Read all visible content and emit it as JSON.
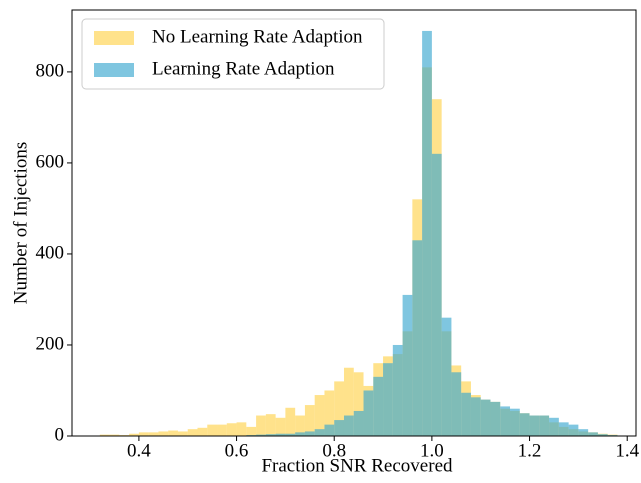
{
  "chart_data": {
    "type": "histogram",
    "xlabel": "Fraction SNR Recovered",
    "ylabel": "Number of Injections",
    "bins": [
      0.3,
      0.32,
      0.34,
      0.36,
      0.38,
      0.4,
      0.42,
      0.44,
      0.46,
      0.48,
      0.5,
      0.52,
      0.54,
      0.56,
      0.58,
      0.6,
      0.62,
      0.64,
      0.66,
      0.68,
      0.7,
      0.72,
      0.74,
      0.76,
      0.78,
      0.8,
      0.82,
      0.84,
      0.86,
      0.88,
      0.9,
      0.92,
      0.94,
      0.96,
      0.98,
      1.0,
      1.02,
      1.04,
      1.06,
      1.08,
      1.1,
      1.12,
      1.14,
      1.16,
      1.18,
      1.2,
      1.22,
      1.24,
      1.26,
      1.28,
      1.3,
      1.32,
      1.34,
      1.36,
      1.38,
      1.4
    ],
    "series": [
      {
        "name": "No Learning Rate Adaption",
        "color": "#ffd24d",
        "values": [
          0,
          3,
          3,
          2,
          5,
          8,
          8,
          10,
          12,
          10,
          15,
          18,
          25,
          25,
          28,
          30,
          20,
          45,
          48,
          40,
          62,
          45,
          68,
          90,
          100,
          120,
          150,
          140,
          110,
          160,
          175,
          180,
          230,
          520,
          810,
          740,
          230,
          155,
          120,
          90,
          80,
          75,
          60,
          55,
          50,
          45,
          45,
          30,
          20,
          15,
          10,
          8,
          5,
          3,
          1
        ]
      },
      {
        "name": "Learning Rate Adaption",
        "color": "#3aa8cf",
        "values": [
          0,
          0,
          0,
          0,
          0,
          0,
          0,
          0,
          0,
          0,
          0,
          0,
          0,
          0,
          1,
          1,
          2,
          3,
          4,
          5,
          5,
          8,
          10,
          15,
          25,
          35,
          45,
          55,
          100,
          130,
          160,
          200,
          310,
          430,
          890,
          620,
          260,
          140,
          95,
          85,
          80,
          75,
          65,
          60,
          50,
          45,
          45,
          40,
          30,
          25,
          15,
          8,
          4,
          2,
          1
        ]
      }
    ],
    "alpha": 0.65,
    "xlim": [
      0.263,
      1.418
    ],
    "ylim": [
      0,
      936
    ],
    "xticks": [
      0.4,
      0.6,
      0.8,
      {
        "value": 1,
        "label": "1.0"
      },
      1.2,
      1.4
    ],
    "yticks": [
      0,
      200,
      400,
      600,
      800
    ],
    "legend": "upper left"
  }
}
